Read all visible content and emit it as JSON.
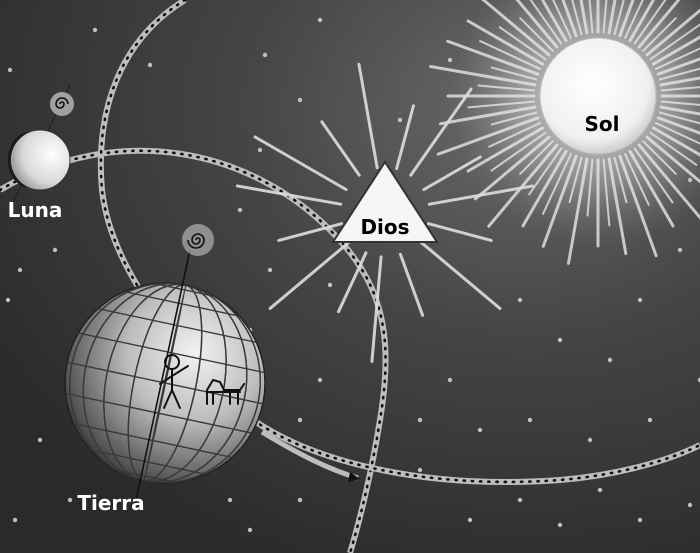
{
  "labels": {
    "sun": "Sol",
    "god": "Dios",
    "moon": "Luna",
    "earth": "Tierra"
  },
  "colors": {
    "background": "#3a3a3a",
    "sun": "#f4f4f4",
    "rays": "#e6e6e6",
    "orbit": "#bdbdbd",
    "orbit_dots": "#111111",
    "text_dark": "#000000",
    "text_light": "#ffffff"
  }
}
